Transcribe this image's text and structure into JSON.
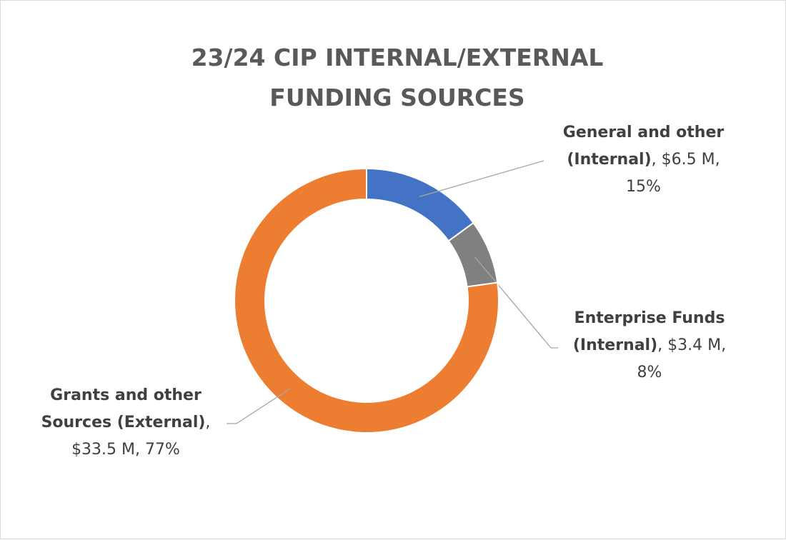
{
  "chart_data": {
    "type": "pie",
    "title": "23/24 CIP INTERNAL/EXTERNAL FUNDING SOURCES",
    "categories": [
      "General and other (Internal)",
      "Enterprise Funds (Internal)",
      "Grants and other Sources (External)"
    ],
    "values": [
      6.5,
      3.4,
      33.5
    ],
    "value_labels": [
      "$6.5 M",
      "$3.4 M",
      "$33.5 M"
    ],
    "percent_labels": [
      "15%",
      "8%",
      "77%"
    ],
    "colors": [
      "#4472c4",
      "#808080",
      "#ed7d31"
    ],
    "donut": true
  }
}
